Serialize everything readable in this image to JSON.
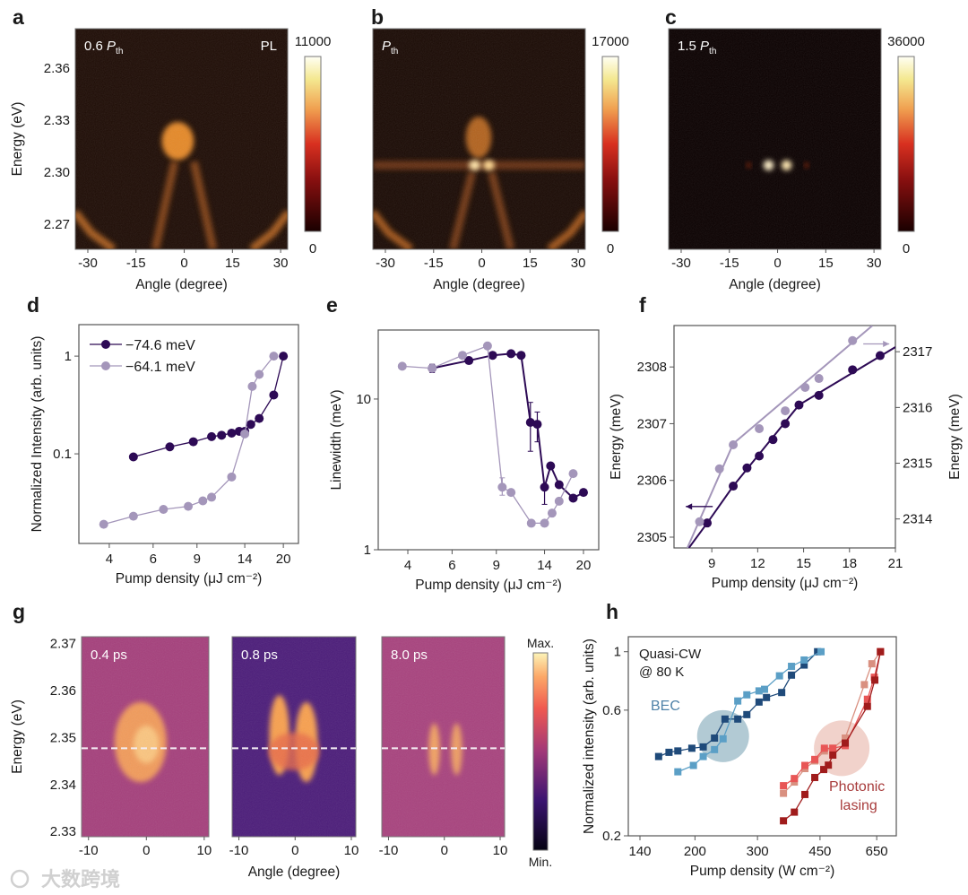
{
  "figure": {
    "panel_labels": [
      "a",
      "b",
      "c",
      "d",
      "e",
      "f",
      "g",
      "h"
    ],
    "watermark": "大数跨境"
  },
  "chart_data": [
    {
      "id": "a",
      "type": "heatmap",
      "xlabel": "Angle (degree)",
      "ylabel": "Energy (eV)",
      "xlim": [
        -33.9,
        32.2
      ],
      "ylim": [
        2.2555,
        2.3828
      ],
      "xticks": [
        -30,
        -15,
        0,
        15,
        30
      ],
      "xtick_labels": [
        "-30",
        "-15",
        "0",
        "15",
        "30"
      ],
      "yticks": [
        2.36,
        2.33,
        2.3,
        2.27
      ],
      "ytick_labels": [
        "2.36",
        "2.33",
        "2.30",
        "2.27"
      ],
      "colorbar": {
        "max": "11000",
        "min": "0",
        "colormap": "hot"
      },
      "annotation": {
        "prefix": "0.6 ",
        "symbol": "P",
        "sub": "th",
        "mode": "PL"
      },
      "background": "#1e0c05",
      "blobs": [
        {
          "x": -2,
          "y": 2.318,
          "rx": 5,
          "ry": 0.011,
          "color": "#f0902c",
          "opacity": 0.95
        }
      ],
      "curves": [
        {
          "points": [
            [
              -3,
              2.306
            ],
            [
              -9,
              2.2555
            ]
          ],
          "color": "#a8561c",
          "opacity": 0.7
        },
        {
          "points": [
            [
              3,
              2.306
            ],
            [
              9,
              2.2555
            ]
          ],
          "color": "#a8561c",
          "opacity": 0.7
        },
        {
          "points": [
            [
              -34,
              2.277
            ],
            [
              -29,
              2.265
            ],
            [
              -22,
              2.2555
            ]
          ],
          "color": "#c06a22",
          "opacity": 0.85
        },
        {
          "points": [
            [
              32.5,
              2.277
            ],
            [
              27.5,
              2.265
            ],
            [
              21,
              2.2555
            ]
          ],
          "color": "#c06a22",
          "opacity": 0.85
        }
      ]
    },
    {
      "id": "b",
      "type": "heatmap",
      "xlabel": "Angle (degree)",
      "xlim": [
        -33.9,
        32.2
      ],
      "ylim": [
        2.2555,
        2.3828
      ],
      "xticks": [
        -30,
        -15,
        0,
        15,
        30
      ],
      "xtick_labels": [
        "-30",
        "-15",
        "0",
        "15",
        "30"
      ],
      "colorbar": {
        "max": "17000",
        "min": "0",
        "colormap": "hot"
      },
      "annotation": {
        "prefix": "",
        "symbol": "P",
        "sub": "th"
      },
      "background": "#1a0a04",
      "band": {
        "y": 2.304,
        "height": 0.005,
        "color": "#7a3a12",
        "opacity": 0.8
      },
      "blobs": [
        {
          "x": -1,
          "y": 2.32,
          "rx": 4,
          "ry": 0.012,
          "color": "#d87a28",
          "opacity": 0.8
        },
        {
          "x": -2.2,
          "y": 2.304,
          "rx": 1.8,
          "ry": 0.003,
          "color": "#ffe4a8",
          "opacity": 1
        },
        {
          "x": 2.2,
          "y": 2.304,
          "rx": 1.8,
          "ry": 0.003,
          "color": "#ffd890",
          "opacity": 1
        }
      ],
      "curves": [
        {
          "points": [
            [
              -3,
              2.3
            ],
            [
              -9,
              2.2555
            ]
          ],
          "color": "#9a4e1a",
          "opacity": 0.7
        },
        {
          "points": [
            [
              3,
              2.3
            ],
            [
              9,
              2.2555
            ]
          ],
          "color": "#9a4e1a",
          "opacity": 0.7
        },
        {
          "points": [
            [
              -34,
              2.277
            ],
            [
              -29,
              2.265
            ],
            [
              -22,
              2.2555
            ]
          ],
          "color": "#b8621e",
          "opacity": 0.85
        },
        {
          "points": [
            [
              32.5,
              2.277
            ],
            [
              27.5,
              2.265
            ],
            [
              21,
              2.2555
            ]
          ],
          "color": "#b8621e",
          "opacity": 0.85
        }
      ]
    },
    {
      "id": "c",
      "type": "heatmap",
      "xlabel": "Angle (degree)",
      "xlim": [
        -33.9,
        32.2
      ],
      "ylim": [
        2.2555,
        2.3828
      ],
      "xticks": [
        -30,
        -15,
        0,
        15,
        30
      ],
      "xtick_labels": [
        "-30",
        "-15",
        "0",
        "15",
        "30"
      ],
      "colorbar": {
        "max": "36000",
        "min": "0",
        "colormap": "hot"
      },
      "annotation": {
        "prefix": "1.5 ",
        "symbol": "P",
        "sub": "th"
      },
      "background": "#0a0000",
      "blobs": [
        {
          "x": -2.8,
          "y": 2.304,
          "rx": 1.6,
          "ry": 0.003,
          "color": "#fff0c8",
          "opacity": 1
        },
        {
          "x": 2.8,
          "y": 2.304,
          "rx": 1.6,
          "ry": 0.003,
          "color": "#ffe8b0",
          "opacity": 1
        },
        {
          "x": -9,
          "y": 2.304,
          "rx": 0.6,
          "ry": 0.0015,
          "color": "#c03010",
          "opacity": 0.8
        },
        {
          "x": 9,
          "y": 2.304,
          "rx": 0.6,
          "ry": 0.0015,
          "color": "#c03010",
          "opacity": 0.8
        }
      ],
      "curves": []
    },
    {
      "id": "d",
      "type": "line",
      "xscale": "log",
      "yscale": "log",
      "xlim": [
        3.02,
        23
      ],
      "ylim": [
        0.0121,
        2.1
      ],
      "xticks": [
        4,
        6,
        9,
        14,
        20
      ],
      "xtick_labels": [
        "4",
        "6",
        "9",
        "14",
        "20"
      ],
      "yticks": [
        0.1,
        1
      ],
      "ytick_labels": [
        "0.1",
        "1"
      ],
      "xlabel": "Pump density (μJ cm⁻²)",
      "ylabel": "Normalized Intensity (arb. units)",
      "legend": "top-left",
      "series": [
        {
          "name": "−74.6 meV",
          "color": "#2d0a55",
          "marker": "circle",
          "x": [
            5,
            7,
            8.7,
            10.3,
            11.3,
            12.4,
            13.3,
            14,
            14.8,
            16,
            18.3,
            20
          ],
          "y": [
            0.093,
            0.118,
            0.133,
            0.15,
            0.155,
            0.163,
            0.17,
            0.17,
            0.2,
            0.23,
            0.4,
            1
          ]
        },
        {
          "name": "−64.1 meV",
          "color": "#a496ba",
          "marker": "circle",
          "x": [
            3.8,
            5,
            6.6,
            8.3,
            9.5,
            10.3,
            12.4,
            14,
            15,
            16,
            18.3
          ],
          "y": [
            0.019,
            0.023,
            0.027,
            0.029,
            0.033,
            0.036,
            0.058,
            0.16,
            0.49,
            0.65,
            1
          ]
        }
      ]
    },
    {
      "id": "e",
      "type": "line",
      "xscale": "log",
      "yscale": "log",
      "xlim": [
        3.05,
        23
      ],
      "ylim": [
        1,
        28.7
      ],
      "xticks": [
        4,
        6,
        9,
        14,
        20
      ],
      "xtick_labels": [
        "4",
        "6",
        "9",
        "14",
        "20"
      ],
      "yticks": [
        1,
        10
      ],
      "ytick_labels": [
        "1",
        "10"
      ],
      "xlabel": "Pump density (μJ cm⁻²)",
      "ylabel": "Linewidth (meV)",
      "series": [
        {
          "name": "−74.6 meV",
          "color": "#2d0a55",
          "marker": "circle",
          "x": [
            5,
            7,
            8.7,
            10.3,
            11.3,
            12.3,
            13.1,
            14,
            14.8,
            16,
            18.2,
            20
          ],
          "y": [
            16,
            18,
            19.5,
            20,
            19.5,
            7,
            6.8,
            2.6,
            3.6,
            2.7,
            2.2,
            2.4
          ],
          "error_bars": [
            {
              "x": 5,
              "low": 15,
              "high": 17
            },
            {
              "x": 12.3,
              "low": 4.5,
              "high": 9.5
            },
            {
              "x": 13.1,
              "low": 5.2,
              "high": 8.2
            },
            {
              "x": 14,
              "low": 2.0,
              "high": 2.6
            }
          ]
        },
        {
          "name": "−64.1 meV",
          "color": "#a496ba",
          "marker": "circle",
          "x": [
            3.8,
            5,
            6.6,
            8.3,
            9.5,
            10.3,
            12.4,
            14,
            15,
            16,
            18.2
          ],
          "y": [
            16.5,
            16,
            19.5,
            22.5,
            2.6,
            2.4,
            1.5,
            1.5,
            1.75,
            2.1,
            3.2
          ],
          "error_bars": [
            {
              "x": 9.5,
              "low": 2.3,
              "high": 3.0
            }
          ]
        }
      ]
    },
    {
      "id": "f",
      "type": "line",
      "xscale": "linear",
      "yscale": "linear",
      "xlim": [
        6.53,
        21
      ],
      "ylim": [
        2304.81,
        2308.73
      ],
      "y2lim": [
        2313.48,
        2317.47
      ],
      "xticks": [
        9,
        12,
        15,
        18,
        21
      ],
      "xtick_labels": [
        "9",
        "12",
        "15",
        "18",
        "21"
      ],
      "yticks": [
        2305,
        2306,
        2307,
        2308
      ],
      "ytick_labels": [
        "2305",
        "2306",
        "2307",
        "2308"
      ],
      "y2ticks": [
        2314,
        2315,
        2316,
        2317
      ],
      "y2tick_labels": [
        "2314",
        "2315",
        "2316",
        "2317"
      ],
      "xlabel": "Pump density (μJ cm⁻²)",
      "ylabel": "Energy (meV)",
      "y2label": "Energy (meV)",
      "series": [
        {
          "name": "−74.6 meV",
          "color": "#2d0a55",
          "marker": "circle",
          "axis": "left",
          "x": [
            8.7,
            10.4,
            11.3,
            12.1,
            13,
            13.8,
            14.7,
            16,
            18.2,
            20
          ],
          "y": [
            2305.25,
            2305.9,
            2306.22,
            2306.43,
            2306.72,
            2307.0,
            2307.33,
            2307.5,
            2307.95,
            2308.2
          ],
          "fit": [
            [
              7.5,
              2304.81
            ],
            [
              8.7,
              2305.25
            ],
            [
              10.4,
              2305.9
            ],
            [
              14.7,
              2307.33
            ],
            [
              21,
              2308.35
            ]
          ],
          "arrow": {
            "from": [
              9.06,
              2305.54
            ],
            "to": [
              7.3,
              2305.54
            ]
          }
        },
        {
          "name": "−64.1 meV",
          "color": "#a496ba",
          "marker": "circle",
          "axis": "right",
          "x": [
            8.2,
            9.5,
            10.4,
            12.1,
            13.8,
            15.1,
            16,
            18.2
          ],
          "y": [
            2313.95,
            2314.9,
            2315.33,
            2315.62,
            2315.94,
            2316.36,
            2316.52,
            2317.2
          ],
          "fit": [
            [
              7.4,
              2313.48
            ],
            [
              10.4,
              2315.35
            ],
            [
              19.5,
              2317.47
            ]
          ],
          "arrow": {
            "from": [
              18.9,
              2317.14
            ],
            "to": [
              20.6,
              2317.14
            ]
          }
        }
      ]
    },
    {
      "id": "g",
      "type": "heatmap",
      "xlabel": "Angle (degree)",
      "ylabel": "Energy (eV)",
      "xlim": [
        -11.2,
        10.8
      ],
      "ylim": [
        2.3289,
        2.3714
      ],
      "xticks": [
        -10,
        0,
        10
      ],
      "xtick_labels": [
        "-10",
        "0",
        "10"
      ],
      "yticks": [
        2.37,
        2.36,
        2.35,
        2.34,
        2.33
      ],
      "ytick_labels": [
        "2.37",
        "2.36",
        "2.35",
        "2.34",
        "2.33"
      ],
      "dashed_line_energy": 2.3477,
      "colorbar": {
        "max": "Max.",
        "min": "Min.",
        "colormap": "magma"
      },
      "frames": [
        {
          "label": "0.4 ps",
          "background": "#a5407c",
          "blobs": [
            {
              "x": -1,
              "y": 2.349,
              "rx": 4.5,
              "ry": 0.0085,
              "color": "#f6a05a",
              "opacity": 0.95
            },
            {
              "x": 0,
              "y": 2.3485,
              "rx": 2.2,
              "ry": 0.004,
              "color": "#ffd890",
              "opacity": 0.7
            }
          ]
        },
        {
          "label": "0.8 ps",
          "background": "#4c1d7a",
          "blobs": [
            {
              "x": -2.8,
              "y": 2.3505,
              "rx": 1.8,
              "ry": 0.0085,
              "color": "#f8a050",
              "opacity": 1
            },
            {
              "x": 2.0,
              "y": 2.349,
              "rx": 2.0,
              "ry": 0.0085,
              "color": "#f8a050",
              "opacity": 1
            },
            {
              "x": -0.2,
              "y": 2.347,
              "rx": 4.5,
              "ry": 0.004,
              "color": "#e86a4a",
              "opacity": 0.8
            }
          ]
        },
        {
          "label": "8.0 ps",
          "background": "#a8437e",
          "blobs": [
            {
              "x": -1.8,
              "y": 2.3475,
              "rx": 1.0,
              "ry": 0.0055,
              "color": "#f6a862",
              "opacity": 0.95
            },
            {
              "x": 2.2,
              "y": 2.3475,
              "rx": 1.0,
              "ry": 0.0055,
              "color": "#f6a862",
              "opacity": 0.9
            }
          ]
        }
      ]
    },
    {
      "id": "h",
      "type": "line",
      "xscale": "log",
      "yscale": "log",
      "xlim": [
        129.8,
        738
      ],
      "ylim": [
        0.2,
        1.14
      ],
      "xticks": [
        140,
        200,
        300,
        450,
        650
      ],
      "xtick_labels": [
        "140",
        "200",
        "300",
        "450",
        "650"
      ],
      "yticks": [
        0.2,
        0.6,
        1
      ],
      "ytick_labels": [
        "0.2",
        "0.6",
        "1"
      ],
      "xlabel": "Pump density (W cm⁻²)",
      "ylabel": "Normalized intensity (arb. units)",
      "annotations": {
        "condition_line1": "Quasi-CW",
        "condition_line2": "@ 80 K",
        "bec": "BEC",
        "photonic_line1": "Photonic",
        "photonic_line2": "lasing"
      },
      "regions": [
        {
          "name": "BEC",
          "x": 240,
          "y": 0.478,
          "color": "#7ea7b8"
        },
        {
          "name": "Photonic lasing",
          "x": 518,
          "y": 0.43,
          "color": "#e8b4a8"
        }
      ],
      "series": [
        {
          "name": "BEC 1",
          "color": "#1f4a7a",
          "marker": "square",
          "x": [
            158,
            169,
            179,
            196,
            211,
            227,
            243,
            264,
            280,
            303,
            318,
            351,
            374,
            406,
            443
          ],
          "y": [
            0.4,
            0.415,
            0.42,
            0.43,
            0.435,
            0.47,
            0.555,
            0.555,
            0.577,
            0.644,
            0.67,
            0.7,
            0.815,
            0.89,
            1
          ]
        },
        {
          "name": "BEC 2",
          "color": "#5b9fc6",
          "marker": "square",
          "x": [
            179,
            198,
            211,
            227,
            240,
            264,
            280,
            303,
            314,
            346,
            374,
            406,
            453
          ],
          "y": [
            0.35,
            0.37,
            0.4,
            0.425,
            0.467,
            0.65,
            0.686,
            0.71,
            0.72,
            0.81,
            0.88,
            0.93,
            1
          ]
        },
        {
          "name": "Photonic 1",
          "color": "#d99080",
          "marker": "square",
          "x": [
            355,
            381,
            408,
            435,
            463,
            489,
            530,
            600,
            630,
            666
          ],
          "y": [
            0.29,
            0.32,
            0.36,
            0.385,
            0.42,
            0.43,
            0.47,
            0.75,
            0.9,
            1
          ]
        },
        {
          "name": "Photonic 2",
          "color": "#e85656",
          "marker": "square",
          "x": [
            355,
            381,
            408,
            435,
            463,
            489,
            530,
            612,
            640,
            666
          ],
          "y": [
            0.31,
            0.33,
            0.37,
            0.39,
            0.43,
            0.43,
            0.44,
            0.66,
            0.8,
            1
          ]
        },
        {
          "name": "Photonic 3",
          "color": "#a01c1c",
          "marker": "square",
          "x": [
            355,
            381,
            408,
            435,
            461,
            475,
            489,
            530,
            612,
            642,
            666
          ],
          "y": [
            0.228,
            0.246,
            0.287,
            0.333,
            0.357,
            0.371,
            0.405,
            0.45,
            0.62,
            0.78,
            1
          ]
        }
      ]
    }
  ]
}
